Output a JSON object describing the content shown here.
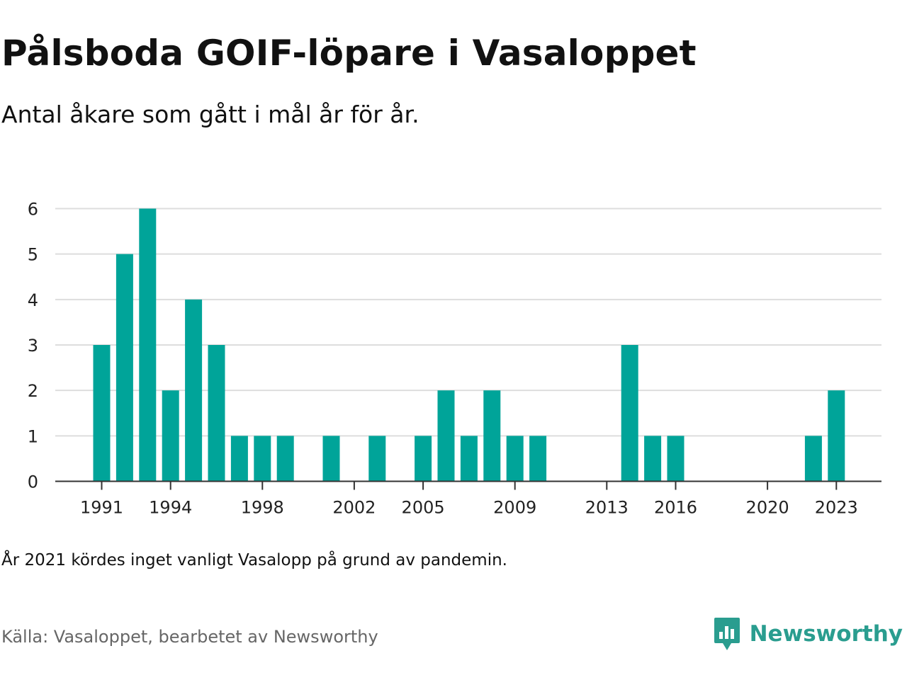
{
  "title": "Pålsboda GOIF-löpare i Vasaloppet",
  "subtitle": "Antal åkare som gått i mål år för år.",
  "note": "År 2021 kördes inget vanligt Vasalopp på grund av pandemin.",
  "source": "Källa: Vasaloppet, bearbetet av Newsworthy",
  "brand": {
    "name": "Newsworthy",
    "icon": "newsworthy-logo-icon",
    "color": "#2a9d8f"
  },
  "colors": {
    "bar": "#00a499",
    "grid": "#dddddd",
    "axis": "#333333"
  },
  "chart_data": {
    "type": "bar",
    "categories": [
      1991,
      1992,
      1993,
      1994,
      1995,
      1996,
      1997,
      1998,
      1999,
      2000,
      2001,
      2002,
      2003,
      2004,
      2005,
      2006,
      2007,
      2008,
      2009,
      2010,
      2011,
      2012,
      2013,
      2014,
      2015,
      2016,
      2017,
      2018,
      2019,
      2020,
      2021,
      2022,
      2023
    ],
    "values": [
      3,
      5,
      6,
      2,
      4,
      3,
      1,
      1,
      1,
      0,
      1,
      0,
      1,
      0,
      1,
      2,
      1,
      2,
      1,
      1,
      0,
      0,
      0,
      3,
      1,
      1,
      0,
      0,
      0,
      0,
      0,
      1,
      2
    ],
    "x_tick_labels": [
      "1991",
      "1994",
      "1998",
      "2002",
      "2005",
      "2009",
      "2013",
      "2016",
      "2020",
      "2023"
    ],
    "y_ticks": [
      0,
      1,
      2,
      3,
      4,
      5,
      6
    ],
    "ylim": [
      0,
      6
    ],
    "xlabel": "",
    "ylabel": "",
    "grid": true,
    "legend": "none"
  }
}
